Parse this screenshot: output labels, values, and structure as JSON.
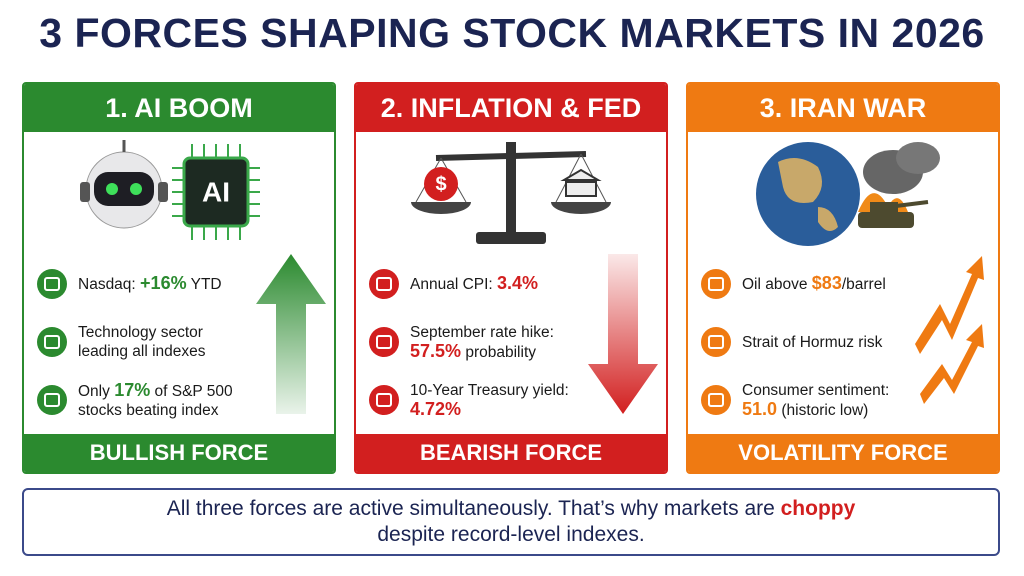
{
  "title": "3 FORCES SHAPING STOCK MARKETS IN 2026",
  "panels": [
    {
      "header": "1. AI BOOM",
      "color": "#2b8a2f",
      "illustration_label": "AI",
      "items": [
        {
          "text": "Nasdaq: ",
          "emphasis": "+16%",
          "suffix": " YTD"
        },
        {
          "text": "Technology sector leading all indexes"
        },
        {
          "text": "Only ",
          "emphasis": "17%",
          "suffix": " of S&P 500 stocks beating index"
        }
      ],
      "footer": "BULLISH FORCE"
    },
    {
      "header": "2. INFLATION & FED",
      "color": "#d21f1f",
      "illustration_label": "$",
      "items": [
        {
          "text": "Annual CPI: ",
          "emphasis": "3.4%"
        },
        {
          "text": "September rate hike: ",
          "emphasis": "57.5%",
          "suffix": " probability"
        },
        {
          "text": "10-Year Treasury yield: ",
          "emphasis": "4.72%"
        }
      ],
      "footer": "BEARISH FORCE"
    },
    {
      "header": "3. IRAN WAR",
      "color": "#ef7a12",
      "items": [
        {
          "text": "Oil above ",
          "emphasis": "$83",
          "suffix": "/barrel"
        },
        {
          "text": "Strait of Hormuz risk"
        },
        {
          "text": "Consumer sentiment: ",
          "emphasis": "51.0",
          "suffix": " (historic low)"
        }
      ],
      "footer": "VOLATILITY FORCE"
    }
  ],
  "note": {
    "text": "All three forces are active simultaneously. That’s why markets are ",
    "emphasis": "choppy",
    "suffix": " despite record-level indexes."
  }
}
